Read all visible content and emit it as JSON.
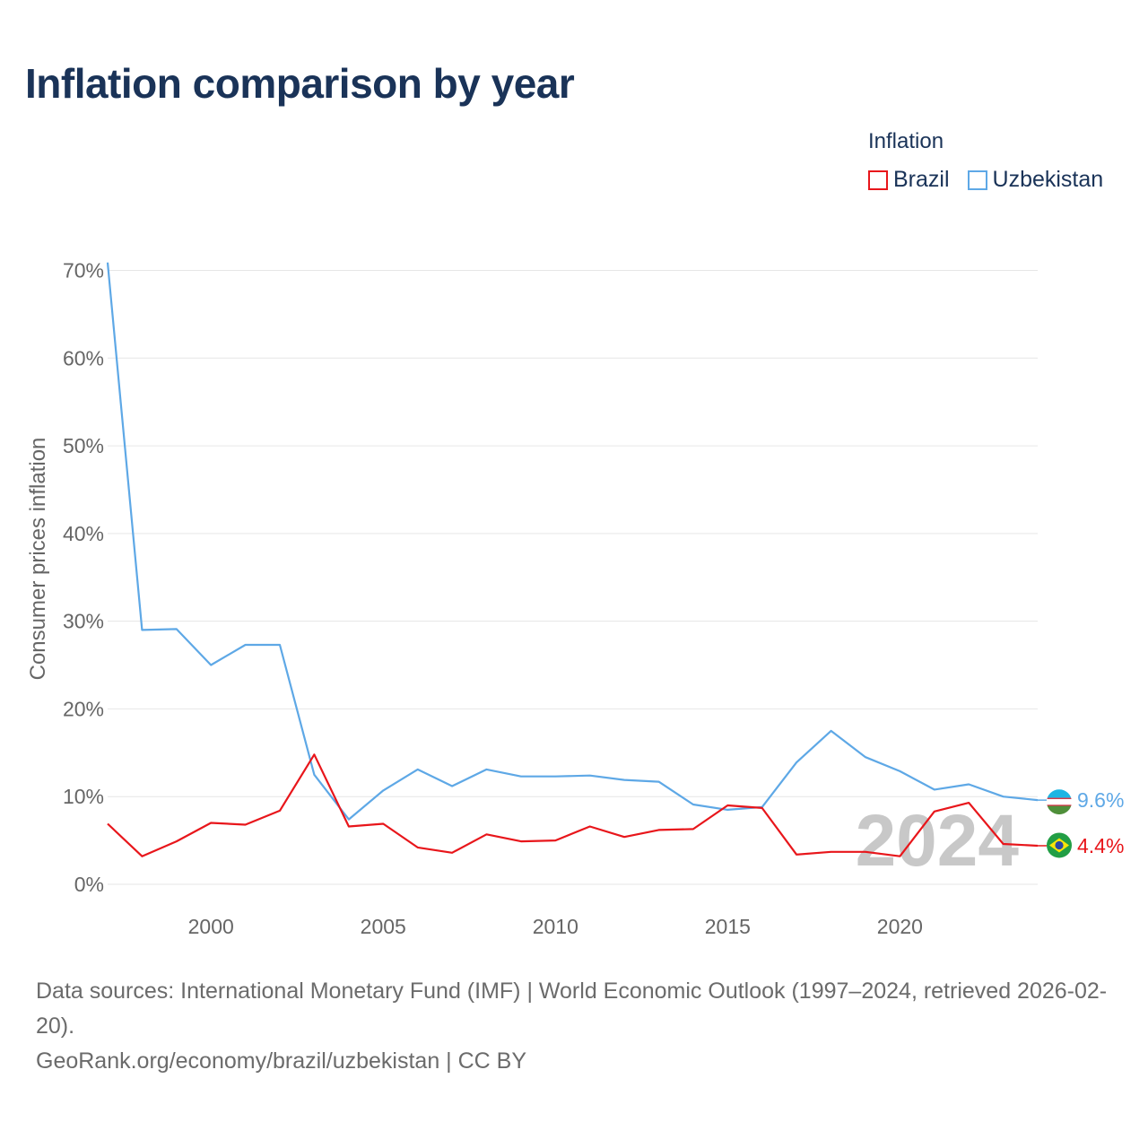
{
  "title": "Inflation comparison by year",
  "legend": {
    "title": "Inflation",
    "items": [
      {
        "label": "Brazil",
        "color": "#e8161b"
      },
      {
        "label": "Uzbekistan",
        "color": "#5ea8e6"
      }
    ]
  },
  "watermark_year": "2024",
  "footer": {
    "sources": "Data sources: International Monetary Fund (IMF) | World Economic Outlook (1997–2024, retrieved 2026-02-20).",
    "credit": "GeoRank.org/economy/brazil/uzbekistan | CC BY"
  },
  "chart_data": {
    "type": "line",
    "title": "Inflation comparison by year",
    "xlabel": "",
    "ylabel": "Consumer prices inflation",
    "x": [
      1997,
      1998,
      1999,
      2000,
      2001,
      2002,
      2003,
      2004,
      2005,
      2006,
      2007,
      2008,
      2009,
      2010,
      2011,
      2012,
      2013,
      2014,
      2015,
      2016,
      2017,
      2018,
      2019,
      2020,
      2021,
      2022,
      2023,
      2024
    ],
    "xlim": [
      1997,
      2024
    ],
    "ylim": [
      0,
      70
    ],
    "x_ticks": [
      2000,
      2005,
      2010,
      2015,
      2020
    ],
    "x_tick_labels": [
      "2000",
      "2005",
      "2010",
      "2015",
      "2020"
    ],
    "y_ticks": [
      0,
      10,
      20,
      30,
      40,
      50,
      60,
      70
    ],
    "y_tick_labels": [
      "0%",
      "10%",
      "20%",
      "30%",
      "40%",
      "50%",
      "60%",
      "70%"
    ],
    "grid": true,
    "legend_position": "top-right",
    "series": [
      {
        "name": "Brazil",
        "color": "#e8161b",
        "end_label": "4.4%",
        "values": [
          6.9,
          3.2,
          4.9,
          7.0,
          6.8,
          8.4,
          14.8,
          6.6,
          6.9,
          4.2,
          3.6,
          5.7,
          4.9,
          5.0,
          6.6,
          5.4,
          6.2,
          6.3,
          9.0,
          8.7,
          3.4,
          3.7,
          3.7,
          3.2,
          8.3,
          9.3,
          4.6,
          4.4
        ]
      },
      {
        "name": "Uzbekistan",
        "color": "#5ea8e6",
        "end_label": "9.6%",
        "values": [
          70.9,
          29.0,
          29.1,
          25.0,
          27.3,
          27.3,
          12.5,
          7.4,
          10.7,
          13.1,
          11.2,
          13.1,
          12.3,
          12.3,
          12.4,
          11.9,
          11.7,
          9.1,
          8.5,
          8.8,
          13.9,
          17.5,
          14.5,
          12.9,
          10.8,
          11.4,
          10.0,
          9.6
        ]
      }
    ]
  }
}
